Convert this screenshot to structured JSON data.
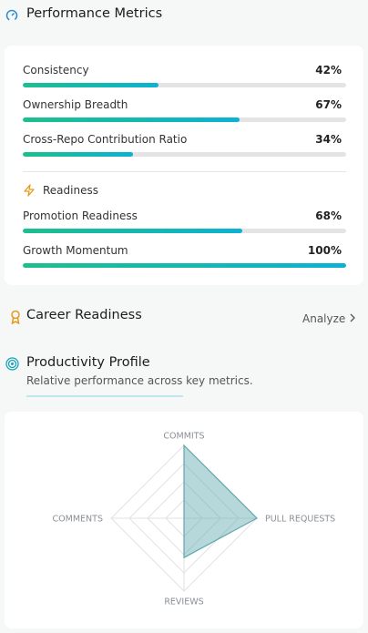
{
  "performance": {
    "title": "Performance Metrics",
    "metrics": [
      {
        "label": "Consistency",
        "value": 42,
        "value_label": "42%"
      },
      {
        "label": "Ownership Breadth",
        "value": 67,
        "value_label": "67%"
      },
      {
        "label": "Cross-Repo Contribution Ratio",
        "value": 34,
        "value_label": "34%"
      }
    ],
    "readiness": {
      "title": "Readiness",
      "metrics": [
        {
          "label": "Promotion Readiness",
          "value": 68,
          "value_label": "68%"
        },
        {
          "label": "Growth Momentum",
          "value": 100,
          "value_label": "100%"
        }
      ]
    }
  },
  "career": {
    "title": "Career Readiness",
    "action": "Analyze"
  },
  "productivity": {
    "title": "Productivity Profile",
    "subtitle": "Relative performance across key metrics."
  },
  "chart_data": {
    "type": "radar",
    "categories": [
      "COMMITS",
      "PULL REQUESTS",
      "REVIEWS",
      "COMMENTS"
    ],
    "values": [
      100,
      100,
      54,
      0
    ],
    "rlim": [
      0,
      100
    ],
    "color": "#5fa8ad"
  }
}
